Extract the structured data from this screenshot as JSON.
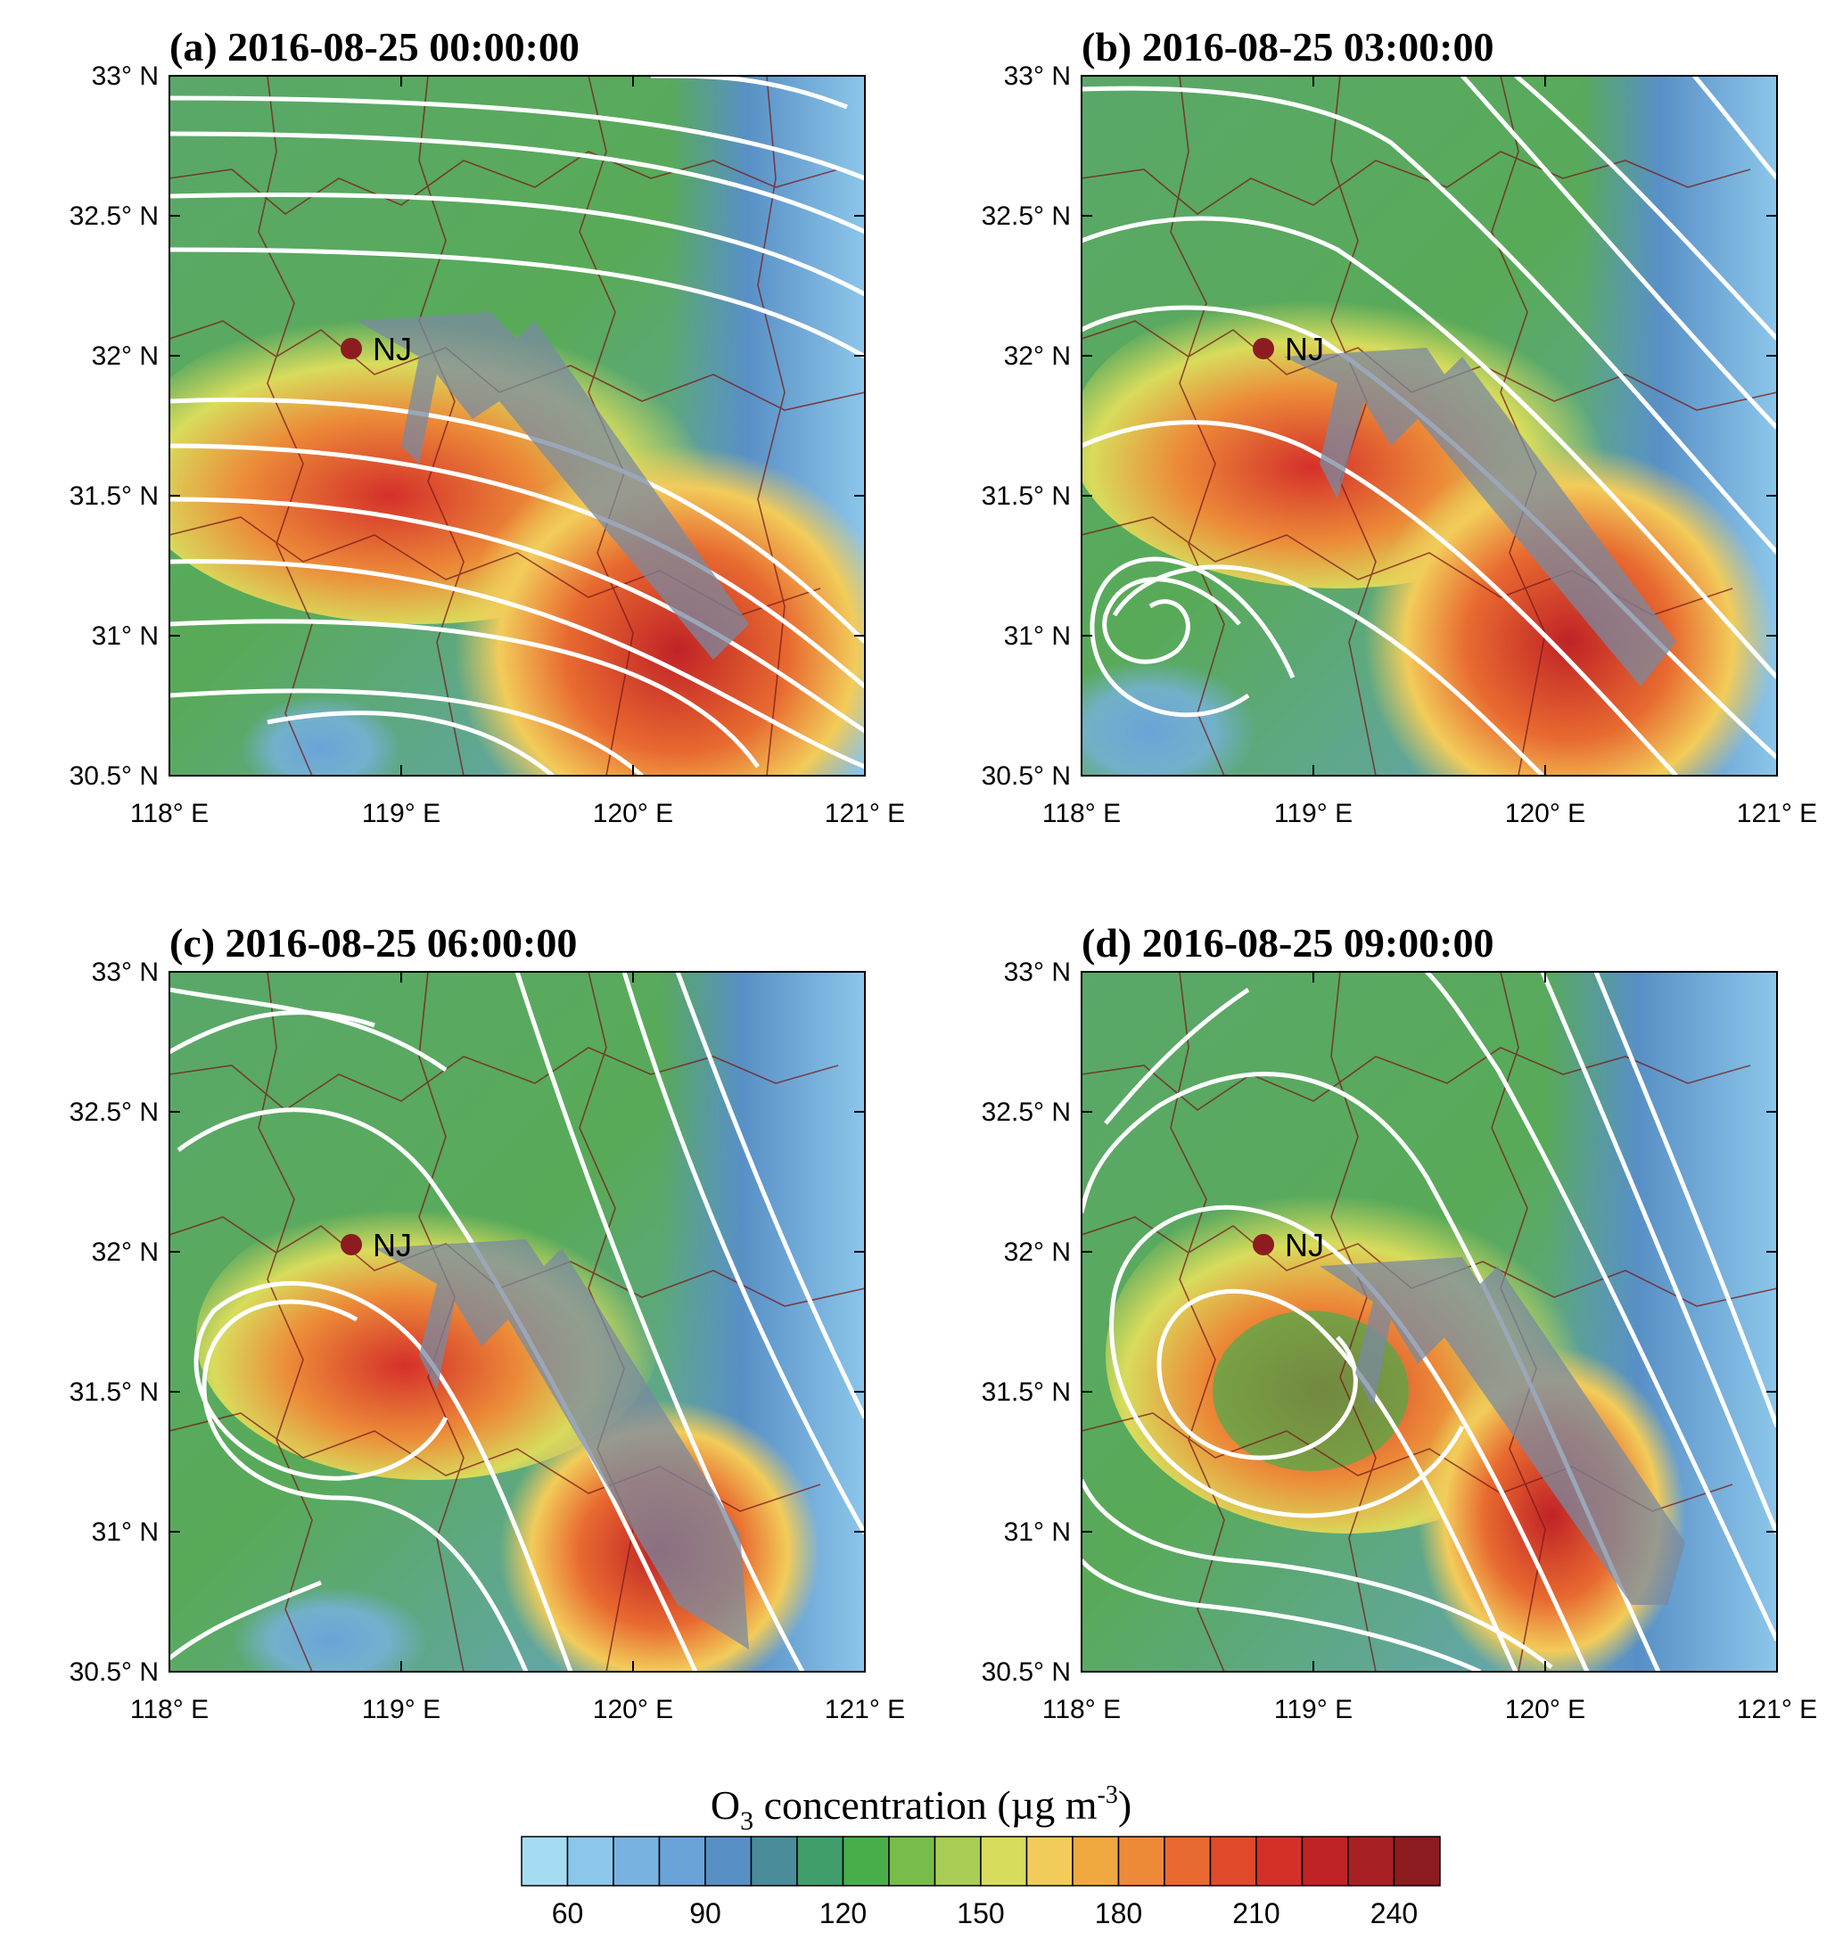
{
  "figure": {
    "panels": [
      {
        "id": "a",
        "title": "(a) 2016-08-25  00:00:00",
        "site_label": "NJ"
      },
      {
        "id": "b",
        "title": "(b) 2016-08-25  03:00:00",
        "site_label": "NJ"
      },
      {
        "id": "c",
        "title": "(c) 2016-08-25  06:00:00",
        "site_label": "NJ"
      },
      {
        "id": "d",
        "title": "(d) 2016-08-25  09:00:00",
        "site_label": "NJ"
      }
    ],
    "lat_ticks": [
      "33° N",
      "32.5° N",
      "32° N",
      "31.5° N",
      "31° N",
      "30.5° N"
    ],
    "lon_ticks": [
      "118° E",
      "119° E",
      "120° E",
      "121° E"
    ],
    "extent": {
      "lon": [
        118,
        121
      ],
      "lat": [
        30.5,
        33
      ]
    },
    "site": {
      "name": "NJ",
      "lon": 118.8,
      "lat": 32.03
    },
    "colorbar": {
      "title_main": "O",
      "title_sub": "3",
      "title_rest": " concentration (µg m",
      "title_sup": "-3",
      "title_end": ")",
      "tick_labels": [
        "60",
        "90",
        "120",
        "150",
        "180",
        "210",
        "240"
      ],
      "colors": [
        "#a6dcf2",
        "#8cc6ea",
        "#78b2e0",
        "#6aa3d8",
        "#5890c6",
        "#4a8c9a",
        "#3f9e6c",
        "#48ae4a",
        "#78bc4c",
        "#a8cc54",
        "#d8dc5c",
        "#f2cc5a",
        "#f0a840",
        "#ec8a38",
        "#e86a30",
        "#e04a2a",
        "#d4302a",
        "#c02226",
        "#a82024",
        "#8c1c20"
      ]
    }
  }
}
